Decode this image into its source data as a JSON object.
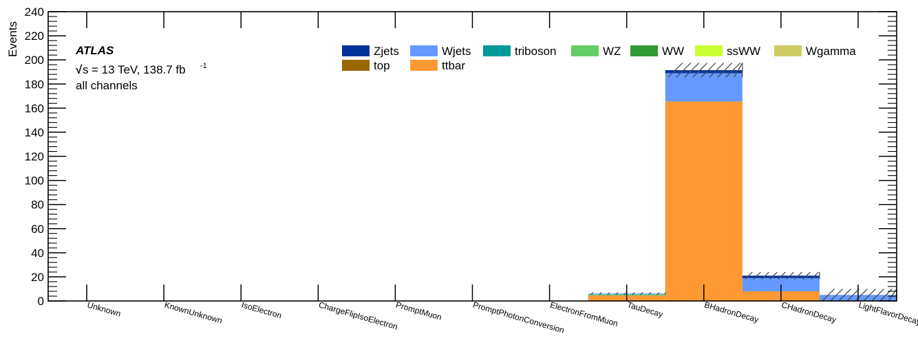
{
  "atlas_label": "ATLAS",
  "sqrt_s": "s",
  "energy_text": "= 13 TeV, 138.7 fb",
  "lumi_sup": "-1",
  "channel_text": "all channels",
  "chart_data": {
    "type": "bar",
    "stacked": true,
    "ylabel": "Events",
    "xlabel": "",
    "ylim": [
      0,
      240
    ],
    "yticks": [
      0,
      20,
      40,
      60,
      80,
      100,
      120,
      140,
      160,
      180,
      200,
      220,
      240
    ],
    "categories": [
      "Unknown",
      "KnownUnknown",
      "IsoElectron",
      "ChargeFlipIsoElectron",
      "PromptMuon",
      "PromptPhotonConversion",
      "ElectronFromMuon",
      "TauDecay",
      "BHadronDecay",
      "CHadronDecay",
      "LightFlavorDecay"
    ],
    "legend": [
      "Zjets",
      "Wjets",
      "triboson",
      "WZ",
      "WW",
      "ssWW",
      "Wgamma",
      "top",
      "ttbar"
    ],
    "legend_placement": "top",
    "series": [
      {
        "name": "ttbar",
        "color": "#ff9933",
        "values": [
          0,
          0,
          0,
          0,
          0,
          0,
          0,
          4.5,
          165.5,
          8,
          0
        ]
      },
      {
        "name": "top",
        "color": "#996600",
        "values": [
          0,
          0,
          0,
          0,
          0,
          0,
          0,
          0,
          0,
          0,
          0
        ]
      },
      {
        "name": "Wgamma",
        "color": "#cccc66",
        "values": [
          0,
          0,
          0,
          0,
          0,
          0,
          0,
          0,
          0,
          0,
          0
        ]
      },
      {
        "name": "ssWW",
        "color": "#ccff33",
        "values": [
          0,
          0,
          0,
          0,
          0,
          0,
          0,
          0,
          0,
          0,
          0
        ]
      },
      {
        "name": "WW",
        "color": "#339933",
        "values": [
          0,
          0,
          0,
          0,
          0,
          0,
          0,
          0,
          0,
          0,
          0
        ]
      },
      {
        "name": "WZ",
        "color": "#66cc66",
        "values": [
          0,
          0,
          0,
          0,
          0,
          0,
          0,
          0.8,
          0,
          0,
          0
        ]
      },
      {
        "name": "triboson",
        "color": "#009999",
        "values": [
          0,
          0,
          0,
          0,
          0,
          0,
          0,
          0.3,
          0,
          0,
          0
        ]
      },
      {
        "name": "Wjets",
        "color": "#6699ff",
        "values": [
          0,
          0,
          0,
          0,
          0,
          0,
          0,
          0.5,
          23.5,
          11,
          5
        ]
      },
      {
        "name": "Zjets",
        "color": "#003399",
        "values": [
          0,
          0,
          0,
          0,
          0,
          0,
          0,
          0,
          2.5,
          2,
          0
        ]
      }
    ],
    "uncertainty": [
      0,
      0,
      0,
      0,
      0,
      0,
      0,
      1,
      6,
      3,
      5
    ]
  }
}
